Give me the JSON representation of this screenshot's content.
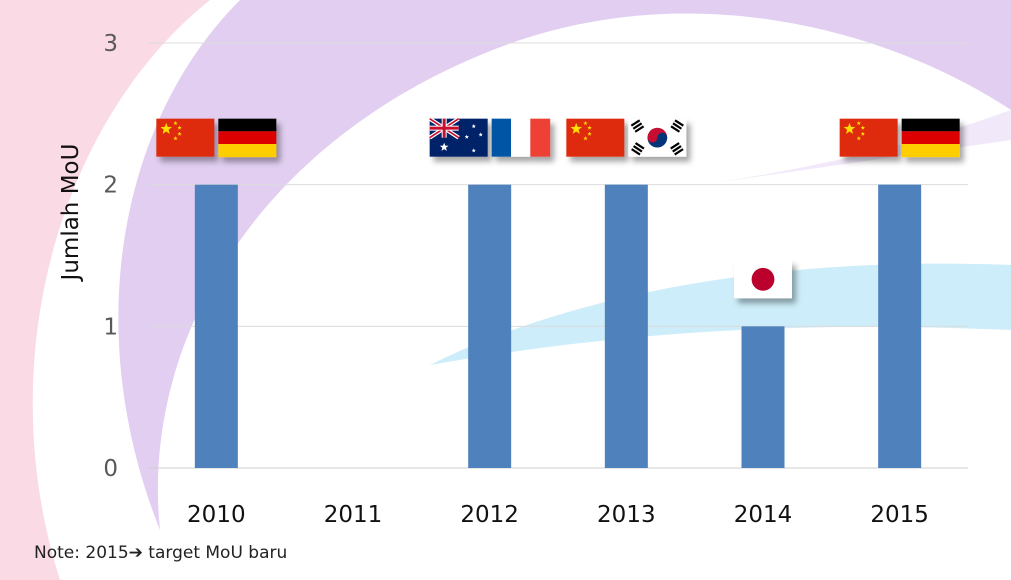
{
  "chart_data": {
    "type": "bar",
    "categories": [
      "2010",
      "2011",
      "2012",
      "2013",
      "2014",
      "2015"
    ],
    "values": [
      2,
      0,
      2,
      2,
      1,
      2
    ],
    "ylabel": "Jumlah MoU",
    "xlabel": "",
    "ylim": [
      0,
      3
    ],
    "yticks": [
      "0",
      "1",
      "2",
      "3"
    ],
    "grid": true,
    "bar_color": "#4F81BD",
    "flag_annotations": [
      {
        "category": "2010",
        "flags": [
          "china",
          "germany"
        ]
      },
      {
        "category": "2012",
        "flags": [
          "australia",
          "france"
        ]
      },
      {
        "category": "2013",
        "flags": [
          "china",
          "south-korea"
        ]
      },
      {
        "category": "2014",
        "flags": [
          "japan"
        ]
      },
      {
        "category": "2015",
        "flags": [
          "china",
          "germany"
        ]
      }
    ]
  },
  "note": {
    "prefix": "Note: 2015",
    "arrow": "➔",
    "suffix": " target MoU baru"
  }
}
